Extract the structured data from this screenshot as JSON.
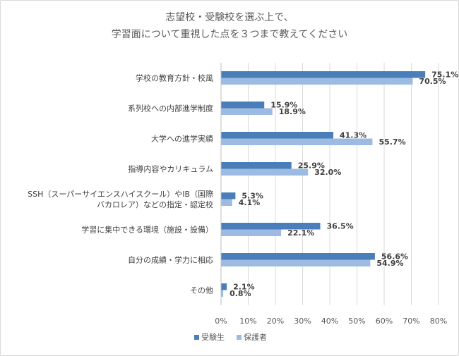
{
  "chart_data": {
    "type": "bar",
    "orientation": "horizontal",
    "title_lines": [
      "志望校・受験校を選ぶ上で、",
      "学習面について重視した点を３つまで教えてください"
    ],
    "categories": [
      [
        "学校の教育方針・校風"
      ],
      [
        "系列校への内部進学制度"
      ],
      [
        "大学への進学実績"
      ],
      [
        "指導内容やカリキュラム"
      ],
      [
        "SSH（スーパーサイエンスハイスクール）やIB（国際",
        "バカロレア）などの指定・認定校"
      ],
      [
        "学習に集中できる環境（施設・設備）"
      ],
      [
        "自分の成績・学力に相応"
      ],
      [
        "その他"
      ]
    ],
    "series": [
      {
        "name": "受験生",
        "color": "#4a7ebb",
        "values": [
          75.1,
          15.9,
          41.3,
          25.9,
          5.3,
          36.5,
          56.6,
          2.1
        ],
        "labels": [
          "75.1%",
          "15.9%",
          "41.3%",
          "25.9%",
          "5.3%",
          "36.5%",
          "56.6%",
          "2.1%"
        ]
      },
      {
        "name": "保護者",
        "color": "#9dbbe2",
        "values": [
          70.5,
          18.9,
          55.7,
          32.0,
          4.1,
          22.1,
          54.9,
          0.8
        ],
        "labels": [
          "70.5%",
          "18.9%",
          "55.7%",
          "32.0%",
          "4.1%",
          "22.1%",
          "54.9%",
          "0.8%"
        ]
      }
    ],
    "xlim": [
      0,
      80
    ],
    "xticks": [
      0,
      10,
      20,
      30,
      40,
      50,
      60,
      70,
      80
    ],
    "xtick_labels": [
      "0%",
      "10%",
      "20%",
      "30%",
      "40%",
      "50%",
      "60%",
      "70%",
      "80%"
    ],
    "grid": true,
    "legend_position": "bottom"
  }
}
